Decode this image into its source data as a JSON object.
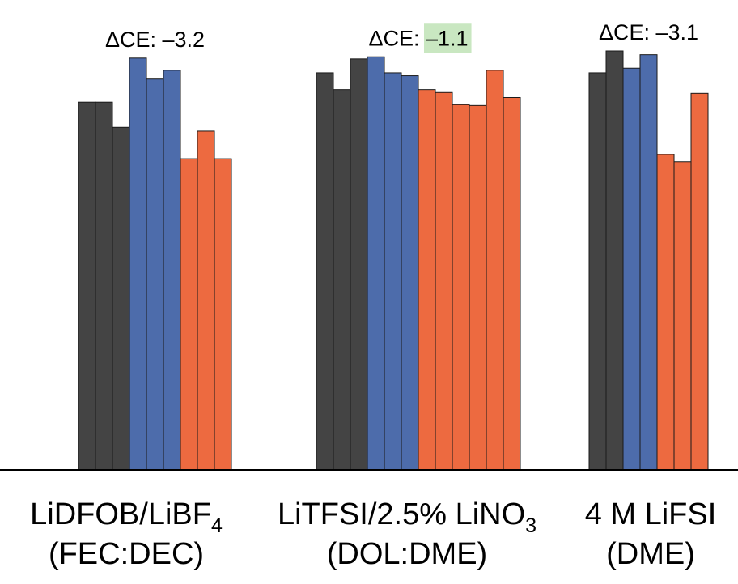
{
  "chart_data": {
    "type": "bar",
    "categories": [
      {
        "line1": "LiDFOB/LiBF",
        "sub": "4",
        "line2": "(FEC:DEC)"
      },
      {
        "line1": "LiTFSI/2.5% LiNO",
        "sub": "3",
        "line2": "(DOL:DME)"
      },
      {
        "line1": "4 M LiFSI",
        "sub": "",
        "line2": "(DME)"
      }
    ],
    "colors": {
      "dark": "#444444",
      "blue": "#4d6cab",
      "orange": "#ed6a40",
      "highlight": "#c9e7c1"
    },
    "ylim": [
      0,
      100
    ],
    "groups": [
      {
        "bars": [
          {
            "color": "dark",
            "value": 87.8
          },
          {
            "color": "dark",
            "value": 87.8
          },
          {
            "color": "dark",
            "value": 81.8
          },
          {
            "color": "blue",
            "value": 98.3
          },
          {
            "color": "blue",
            "value": 93.3
          },
          {
            "color": "blue",
            "value": 95.4
          },
          {
            "color": "orange",
            "value": 74.3
          },
          {
            "color": "orange",
            "value": 80.9
          },
          {
            "color": "orange",
            "value": 74.3
          }
        ],
        "annotation": {
          "prefix": "ΔCE: ",
          "value": "–3.2",
          "highlight": false
        }
      },
      {
        "bars": [
          {
            "color": "dark",
            "value": 94.8
          },
          {
            "color": "dark",
            "value": 90.8
          },
          {
            "color": "dark",
            "value": 98.1
          },
          {
            "color": "blue",
            "value": 98.6
          },
          {
            "color": "blue",
            "value": 94.8
          },
          {
            "color": "blue",
            "value": 94.1
          },
          {
            "color": "orange",
            "value": 90.8
          },
          {
            "color": "orange",
            "value": 90.1
          },
          {
            "color": "orange",
            "value": 87.2
          },
          {
            "color": "orange",
            "value": 87.0
          },
          {
            "color": "orange",
            "value": 95.4
          },
          {
            "color": "orange",
            "value": 88.9
          }
        ],
        "annotation": {
          "prefix": "ΔCE: ",
          "value": "–1.1",
          "highlight": true
        }
      },
      {
        "bars": [
          {
            "color": "dark",
            "value": 94.8
          },
          {
            "color": "dark",
            "value": 100.0
          },
          {
            "color": "blue",
            "value": 95.9
          },
          {
            "color": "blue",
            "value": 99.1
          },
          {
            "color": "orange",
            "value": 75.3
          },
          {
            "color": "orange",
            "value": 73.6
          },
          {
            "color": "orange",
            "value": 89.9
          }
        ],
        "annotation": {
          "prefix": "ΔCE: ",
          "value": "–3.1",
          "highlight": false
        }
      }
    ]
  }
}
